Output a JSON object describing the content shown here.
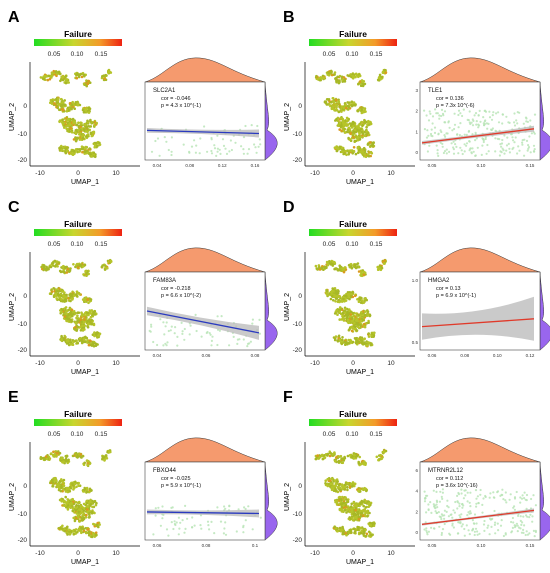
{
  "colors": {
    "gradient_low": "#22dd22",
    "gradient_mid": "#c8d62e",
    "gradient_high": "#ee2211",
    "cell": "#b6c42a",
    "density_top": "#f59a6e",
    "density_right": "#9966ee",
    "line_neg": "#2b3bbf",
    "line_pos": "#e03a2a",
    "band": "#bdbdbd",
    "scatter_pt": "#b7e3b4"
  },
  "chart_data": [
    {
      "type": "scatter",
      "panel_label": "A",
      "colorbar_title": "Failure",
      "colorbar_ticks": [
        "0.05",
        "0.10",
        "0.15"
      ],
      "umap_xlabel": "UMAP_1",
      "umap_ylabel": "UMAP_2",
      "umap_xticks": [
        "-10",
        "0",
        "10"
      ],
      "umap_yticks": [
        "0",
        "-10",
        "-20"
      ],
      "gene": "SLC2A1",
      "cor": "cor = -0.046",
      "p": "p = 4.3 x 10^(-1)",
      "trend": "negative",
      "xticks": [
        "0.04",
        "0.08",
        "0.12",
        "0.16"
      ],
      "yticks": [],
      "density": "sparse"
    },
    {
      "type": "scatter",
      "panel_label": "B",
      "colorbar_title": "Failure",
      "colorbar_ticks": [
        "0.05",
        "0.10",
        "0.15"
      ],
      "umap_xlabel": "UMAP_1",
      "umap_ylabel": "UMAP_2",
      "umap_xticks": [
        "-10",
        "0",
        "10"
      ],
      "umap_yticks": [
        "0",
        "-10",
        "-20"
      ],
      "gene": "TLE1",
      "cor": "cor = 0.136",
      "p": "p = 7.3x 10^(-6)",
      "trend": "positive",
      "xticks": [
        "0.05",
        "0.10",
        "0.15"
      ],
      "yticks": [
        "3",
        "2",
        "1",
        "0"
      ],
      "density": "dense"
    },
    {
      "type": "scatter",
      "panel_label": "C",
      "colorbar_title": "Failure",
      "colorbar_ticks": [
        "0.05",
        "0.10",
        "0.15"
      ],
      "umap_xlabel": "UMAP_1",
      "umap_ylabel": "UMAP_2",
      "umap_xticks": [
        "-10",
        "0",
        "10"
      ],
      "umap_yticks": [
        "0",
        "-10",
        "-20"
      ],
      "gene": "FAM83A",
      "cor": "cor = -0.218",
      "p": "p = 6.6 x 10^(-2)",
      "trend": "negative",
      "xticks": [
        "0.04",
        "0.06",
        "0.08"
      ],
      "yticks": [],
      "density": "sparse"
    },
    {
      "type": "scatter",
      "panel_label": "D",
      "colorbar_title": "Failure",
      "colorbar_ticks": [
        "0.05",
        "0.10",
        "0.15"
      ],
      "umap_xlabel": "UMAP_1",
      "umap_ylabel": "UMAP_2",
      "umap_xticks": [
        "-10",
        "0",
        "10"
      ],
      "umap_yticks": [
        "0",
        "-10",
        "-20"
      ],
      "gene": "HMGA2",
      "cor": "cor = 0.13",
      "p": "p = 6.9 x 10^(-1)",
      "trend": "positive",
      "xticks": [
        "0.06",
        "0.08",
        "0.10",
        "0.12"
      ],
      "yticks": [
        "1.0",
        "0.5"
      ],
      "density": "none"
    },
    {
      "type": "scatter",
      "panel_label": "E",
      "colorbar_title": "Failure",
      "colorbar_ticks": [
        "0.05",
        "0.10",
        "0.15"
      ],
      "umap_xlabel": "UMAP_1",
      "umap_ylabel": "UMAP_2",
      "umap_xticks": [
        "-10",
        "0",
        "10"
      ],
      "umap_yticks": [
        "0",
        "-10",
        "-20"
      ],
      "gene": "FBXO44",
      "cor": "cor = -0.025",
      "p": "p = 5.9 x 10^(-1)",
      "trend": "negative",
      "xticks": [
        "0.06",
        "0.08",
        "0.1"
      ],
      "yticks": [],
      "density": "sparse"
    },
    {
      "type": "scatter",
      "panel_label": "F",
      "colorbar_title": "Failure",
      "colorbar_ticks": [
        "0.05",
        "0.10",
        "0.15"
      ],
      "umap_xlabel": "UMAP_1",
      "umap_ylabel": "UMAP_2",
      "umap_xticks": [
        "-10",
        "0",
        "10"
      ],
      "umap_yticks": [
        "0",
        "-10",
        "-20"
      ],
      "gene": "MTRNR2L12",
      "cor": "cor = 0.112",
      "p": "p = 3.6x 10^(-16)",
      "trend": "positive",
      "xticks": [
        "0.05",
        "0.10",
        "0.15"
      ],
      "yticks": [
        "6",
        "4",
        "2",
        "0"
      ],
      "density": "dense"
    }
  ]
}
